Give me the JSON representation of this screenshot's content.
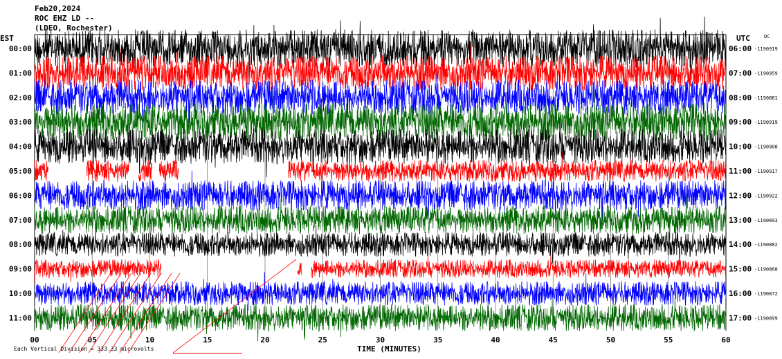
{
  "header": {
    "date": "Feb20,2024",
    "station": "ROC EHZ LD --",
    "network": "(LDEO, Rochester)"
  },
  "left_zone": "EST",
  "right_zone": "UTC",
  "dc_header": "DC",
  "footer": {
    "scale_note": "Each Vertical Division = 333.33 microvolts"
  },
  "chart_data": {
    "type": "line",
    "title": "Feb20,2024 ROC EHZ LD -- (LDEO, Rochester)",
    "xlabel": "TIME (MINUTES)",
    "ylabel": "",
    "xlim": [
      0,
      60
    ],
    "x_ticks": [
      "00",
      "05",
      "10",
      "15",
      "20",
      "25",
      "30",
      "35",
      "40",
      "45",
      "50",
      "55",
      "60"
    ],
    "grid": true,
    "series_colors": [
      "#000000",
      "#ff0000",
      "#0000ff",
      "#006600"
    ],
    "rows": [
      {
        "est": "00:00",
        "utc": "06:00",
        "dc": "-1190919",
        "color": "#000000",
        "amp": 0.78,
        "gaps": []
      },
      {
        "est": "01:00",
        "utc": "07:00",
        "dc": "-1190959",
        "color": "#ff0000",
        "amp": 0.72,
        "gaps": []
      },
      {
        "est": "02:00",
        "utc": "08:00",
        "dc": "-1190881",
        "color": "#0000ff",
        "amp": 0.72,
        "gaps": []
      },
      {
        "est": "03:00",
        "utc": "09:00",
        "dc": "-1190919",
        "color": "#006600",
        "amp": 0.78,
        "gaps": []
      },
      {
        "est": "04:00",
        "utc": "10:00",
        "dc": "-1190908",
        "color": "#000000",
        "amp": 0.72,
        "gaps": []
      },
      {
        "est": "05:00",
        "utc": "11:00",
        "dc": "-1190917",
        "color": "#ff0000",
        "amp": 0.45,
        "gaps": [
          [
            1.2,
            4.5
          ],
          [
            8.2,
            9.0
          ],
          [
            10.2,
            10.8
          ],
          [
            12.5,
            22.0
          ]
        ]
      },
      {
        "est": "06:00",
        "utc": "12:00",
        "dc": "-1190922",
        "color": "#0000ff",
        "amp": 0.62,
        "gaps": []
      },
      {
        "est": "07:00",
        "utc": "13:00",
        "dc": "-1190893",
        "color": "#006600",
        "amp": 0.58,
        "gaps": []
      },
      {
        "est": "08:00",
        "utc": "14:00",
        "dc": "-1190882",
        "color": "#000000",
        "amp": 0.5,
        "gaps": []
      },
      {
        "est": "09:00",
        "utc": "15:00",
        "dc": "-1190868",
        "color": "#ff0000",
        "amp": 0.38,
        "gaps": [
          [
            11.0,
            22.8
          ],
          [
            23.2,
            24.0
          ]
        ]
      },
      {
        "est": "10:00",
        "utc": "16:00",
        "dc": "-1190872",
        "color": "#0000ff",
        "amp": 0.5,
        "gaps": []
      },
      {
        "est": "11:00",
        "utc": "17:00",
        "dc": "-1190899",
        "color": "#006600",
        "amp": 0.55,
        "gaps": []
      }
    ]
  }
}
